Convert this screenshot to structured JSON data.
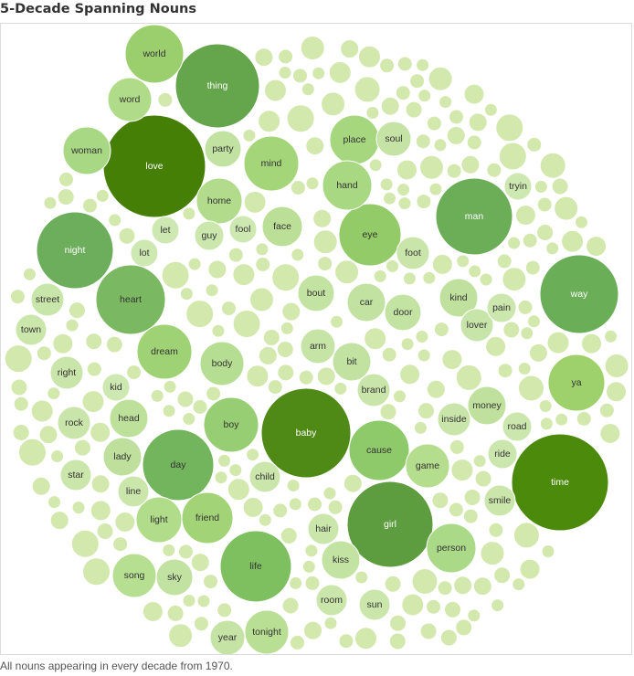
{
  "chart_data": {
    "type": "bubble",
    "title": "5-Decade Spanning Nouns",
    "caption": "All nouns appearing in every decade from 1970.",
    "label_color_dark": "#ffffff",
    "label_color_light": "#333333",
    "filler_color": "#d3e8ad",
    "filler_stroke": "#ffffff",
    "bubbles": [
      {
        "label": "love",
        "size": 56,
        "color": "#457f06"
      },
      {
        "label": "baby",
        "size": 49,
        "color": "#4f8a16"
      },
      {
        "label": "time",
        "size": 53,
        "color": "#4c8a0c"
      },
      {
        "label": "thing",
        "size": 46,
        "color": "#65a54b"
      },
      {
        "label": "girl",
        "size": 47,
        "color": "#5d9c3f"
      },
      {
        "label": "way",
        "size": 43,
        "color": "#6aae58"
      },
      {
        "label": "man",
        "size": 42,
        "color": "#6cae57"
      },
      {
        "label": "night",
        "size": 42,
        "color": "#6cae5b"
      },
      {
        "label": "day",
        "size": 39,
        "color": "#72b55c"
      },
      {
        "label": "life",
        "size": 39,
        "color": "#7ec060"
      },
      {
        "label": "heart",
        "size": 38,
        "color": "#7ab861"
      },
      {
        "label": "eye",
        "size": 34,
        "color": "#93cb68"
      },
      {
        "label": "cause",
        "size": 33,
        "color": "#8fca6a"
      },
      {
        "label": "world",
        "size": 32,
        "color": "#9bcf6e"
      },
      {
        "label": "ya",
        "size": 31,
        "color": "#9ed16b"
      },
      {
        "label": "mind",
        "size": 30,
        "color": "#a5d579"
      },
      {
        "label": "dream",
        "size": 30,
        "color": "#9fd274"
      },
      {
        "label": "boy",
        "size": 30,
        "color": "#98ce73"
      },
      {
        "label": "place",
        "size": 27,
        "color": "#a6d77f"
      },
      {
        "label": "hand",
        "size": 27,
        "color": "#a9d883"
      },
      {
        "label": "friend",
        "size": 28,
        "color": "#a2d477"
      },
      {
        "label": "person",
        "size": 27,
        "color": "#aad988"
      },
      {
        "label": "woman",
        "size": 26,
        "color": "#a9d885"
      },
      {
        "label": "word",
        "size": 24,
        "color": "#b0dc8a"
      },
      {
        "label": "home",
        "size": 25,
        "color": "#b2dc8c"
      },
      {
        "label": "light",
        "size": 25,
        "color": "#b1dc8a"
      },
      {
        "label": "body",
        "size": 24,
        "color": "#b6de92"
      },
      {
        "label": "game",
        "size": 24,
        "color": "#b4dd8d"
      },
      {
        "label": "song",
        "size": 24,
        "color": "#b6df91"
      },
      {
        "label": "tonight",
        "size": 24,
        "color": "#b8df93"
      },
      {
        "label": "face",
        "size": 22,
        "color": "#bcdf98"
      },
      {
        "label": "lady",
        "size": 21,
        "color": "#bee09c"
      },
      {
        "label": "kind",
        "size": 21,
        "color": "#bfe19d"
      },
      {
        "label": "money",
        "size": 21,
        "color": "#c0e19e"
      },
      {
        "label": "head",
        "size": 21,
        "color": "#bde09a"
      },
      {
        "label": "party",
        "size": 20,
        "color": "#c1e2a0"
      },
      {
        "label": "bout",
        "size": 20,
        "color": "#c3e3a2"
      },
      {
        "label": "car",
        "size": 21,
        "color": "#c1e2a0"
      },
      {
        "label": "door",
        "size": 20,
        "color": "#c3e3a2"
      },
      {
        "label": "soul",
        "size": 19,
        "color": "#c4e3a4"
      },
      {
        "label": "arm",
        "size": 19,
        "color": "#c6e4a6"
      },
      {
        "label": "bit",
        "size": 21,
        "color": "#c2e2a1"
      },
      {
        "label": "kiss",
        "size": 21,
        "color": "#c3e3a3"
      },
      {
        "label": "sky",
        "size": 20,
        "color": "#c2e2a1"
      },
      {
        "label": "year",
        "size": 19,
        "color": "#c5e3a5"
      },
      {
        "label": "foot",
        "size": 18,
        "color": "#c9e5aa"
      },
      {
        "label": "lover",
        "size": 18,
        "color": "#c8e5a9"
      },
      {
        "label": "street",
        "size": 18,
        "color": "#c8e5aa"
      },
      {
        "label": "town",
        "size": 17,
        "color": "#cae6ab"
      },
      {
        "label": "rock",
        "size": 18,
        "color": "#c9e5aa"
      },
      {
        "label": "star",
        "size": 17,
        "color": "#cae6ab"
      },
      {
        "label": "right",
        "size": 18,
        "color": "#c9e5aa"
      },
      {
        "label": "brand",
        "size": 18,
        "color": "#c9e5aa"
      },
      {
        "label": "inside",
        "size": 18,
        "color": "#c9e5aa"
      },
      {
        "label": "child",
        "size": 17,
        "color": "#cae6ab"
      },
      {
        "label": "hair",
        "size": 17,
        "color": "#cae6ab"
      },
      {
        "label": "room",
        "size": 17,
        "color": "#cae6ab"
      },
      {
        "label": "sun",
        "size": 17,
        "color": "#cae6ab"
      },
      {
        "label": "smile",
        "size": 17,
        "color": "#cae6ab"
      },
      {
        "label": "ride",
        "size": 16,
        "color": "#cbe7ad"
      },
      {
        "label": "road",
        "size": 16,
        "color": "#cbe7ad"
      },
      {
        "label": "pain",
        "size": 16,
        "color": "#cbe7ad"
      },
      {
        "label": "tryin",
        "size": 15,
        "color": "#cde8b0"
      },
      {
        "label": "guy",
        "size": 16,
        "color": "#cbe7ad"
      },
      {
        "label": "fool",
        "size": 15,
        "color": "#cde8b0"
      },
      {
        "label": "let",
        "size": 15,
        "color": "#cde8b0"
      },
      {
        "label": "lot",
        "size": 15,
        "color": "#cde8b0"
      },
      {
        "label": "kid",
        "size": 15,
        "color": "#cde8b0"
      },
      {
        "label": "line",
        "size": 17,
        "color": "#cae6ab"
      }
    ]
  }
}
